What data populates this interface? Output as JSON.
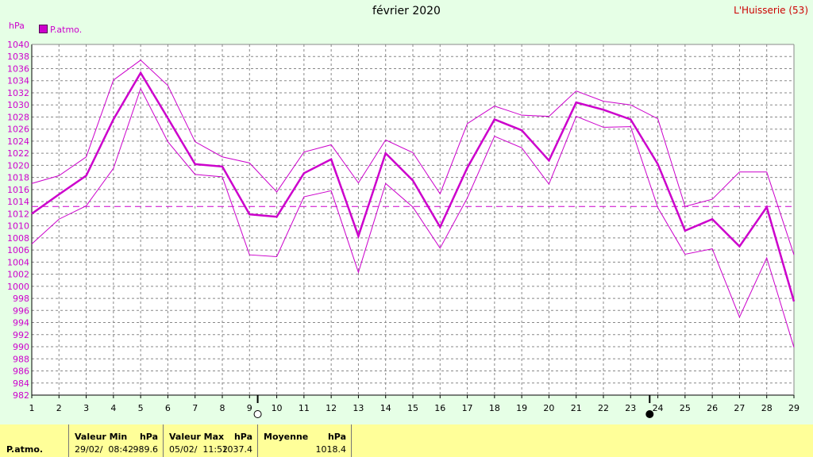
{
  "title": "février 2020",
  "station": "L'Huisserie (53)",
  "unit": "hPa",
  "legend": {
    "label": "P.atmo."
  },
  "colors": {
    "series": "#cc00cc",
    "background": "#e6ffe6",
    "grid": "#888888",
    "stats_bg": "#ffff99"
  },
  "chart_data": {
    "type": "line",
    "title": "février 2020",
    "ylabel": "hPa",
    "ylim": [
      982,
      1040
    ],
    "yticks": [
      982,
      984,
      986,
      988,
      990,
      992,
      994,
      996,
      998,
      1000,
      1002,
      1004,
      1006,
      1008,
      1010,
      1012,
      1014,
      1016,
      1018,
      1020,
      1022,
      1024,
      1026,
      1028,
      1030,
      1032,
      1034,
      1036,
      1038,
      1040
    ],
    "x": [
      1,
      2,
      3,
      4,
      5,
      6,
      7,
      8,
      9,
      10,
      11,
      12,
      13,
      14,
      15,
      16,
      17,
      18,
      19,
      20,
      21,
      22,
      23,
      24,
      25,
      26,
      27,
      28,
      29
    ],
    "series": [
      {
        "name": "P.atmo.",
        "role": "mean",
        "values": [
          1012,
          1015.2,
          1018.3,
          1027.6,
          1035.3,
          1027.8,
          1020.2,
          1019.8,
          1011.9,
          1011.5,
          1018.7,
          1021,
          1008.3,
          1022,
          1017.5,
          1009.8,
          1019.6,
          1027.6,
          1025.8,
          1020.8,
          1030.4,
          1029.2,
          1027.6,
          1020.2,
          1009.2,
          1011.1,
          1006.6,
          1013.1,
          997.5
        ]
      },
      {
        "name": "P.atmo.",
        "role": "max",
        "values": [
          1017,
          1018.3,
          1021.4,
          1034.1,
          1037.4,
          1033.2,
          1023.9,
          1021.4,
          1020.4,
          1015.6,
          1022.2,
          1023.4,
          1017.1,
          1024.2,
          1022.1,
          1015.3,
          1026.9,
          1029.8,
          1028.3,
          1028.1,
          1032.3,
          1030.6,
          1030,
          1027.7,
          1013.2,
          1014.4,
          1018.9,
          1018.9,
          1005.2
        ]
      },
      {
        "name": "P.atmo.",
        "role": "min",
        "values": [
          1007,
          1011.1,
          1013.3,
          1019.5,
          1032.7,
          1023.9,
          1018.5,
          1018.1,
          1005.2,
          1004.9,
          1014.8,
          1015.8,
          1002.3,
          1017,
          1013.1,
          1006.3,
          1014.6,
          1024.8,
          1022.9,
          1016.9,
          1028.1,
          1026.3,
          1026.4,
          1013,
          1005.3,
          1006.2,
          994.9,
          1004.7,
          989.9
        ]
      }
    ],
    "reference_line": {
      "label": "Moyenne",
      "value": 1013.2,
      "style": "dashed"
    },
    "moon_phases": [
      {
        "day": 9.3,
        "phase": "full"
      },
      {
        "day": 23.7,
        "phase": "new"
      }
    ],
    "grid": true
  },
  "stats": {
    "row_label": "P.atmo.",
    "min": {
      "header": "Valeur Min",
      "unit": "hPa",
      "date": "29/02/  08:42",
      "value": "989.6"
    },
    "max": {
      "header": "Valeur Max",
      "unit": "hPa",
      "date": "05/02/  11:52",
      "value": "1037.4"
    },
    "mean": {
      "header": "Moyenne",
      "unit": "hPa",
      "value": "1018.4"
    }
  }
}
